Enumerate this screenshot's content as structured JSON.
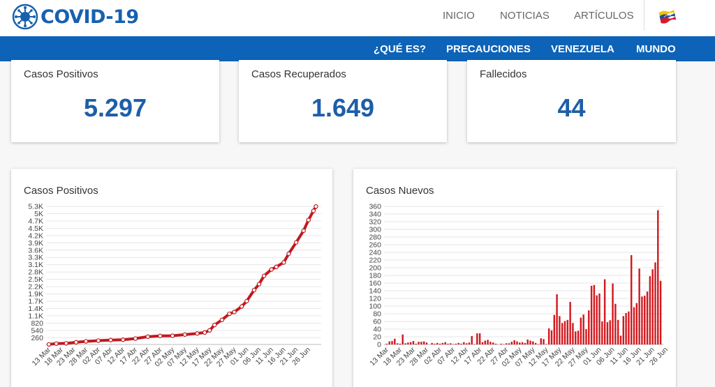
{
  "header": {
    "logo_text": "COVID-19",
    "nav": [
      "INICIO",
      "NOTICIAS",
      "ARTÍCULOS"
    ],
    "subnav": [
      "¿QUÉ ES?",
      "PRECAUCIONES",
      "VENEZUELA",
      "MUNDO"
    ],
    "colors": {
      "brand": "#1760b0",
      "bar": "#0d63b7"
    }
  },
  "stats": [
    {
      "label": "Casos Positivos",
      "value": "5.297"
    },
    {
      "label": "Casos Recuperados",
      "value": "1.649"
    },
    {
      "label": "Fallecidos",
      "value": "44"
    }
  ],
  "chart_data": [
    {
      "type": "line",
      "title": "Casos Positivos",
      "color": "#c0191f",
      "x_ticks": [
        "13 Mar",
        "18 Mar",
        "23 Mar",
        "28 Mar",
        "02 Abr",
        "07 Abr",
        "12 Abr",
        "17 Abr",
        "22 Abr",
        "27 Abr",
        "02 May",
        "07 May",
        "12 May",
        "17 May",
        "22 May",
        "27 May",
        "01 Jun",
        "06 Jun",
        "11 Jun",
        "16 Jun",
        "21 Jun",
        "26 Jun"
      ],
      "y_ticks": [
        "5.3K",
        "5K",
        "4.7K",
        "4.5K",
        "4.2K",
        "3.9K",
        "3.6K",
        "3.3K",
        "3.1K",
        "2.8K",
        "2.5K",
        "2.2K",
        "1.9K",
        "1.7K",
        "1.4K",
        "1.1K",
        "820",
        "540",
        "260"
      ],
      "y_tick_values": [
        5300,
        5020,
        4740,
        4460,
        4180,
        3900,
        3620,
        3340,
        3060,
        2780,
        2500,
        2220,
        1940,
        1660,
        1380,
        1100,
        820,
        540,
        260
      ],
      "ylim": [
        0,
        5300
      ],
      "x_start": "13 Mar",
      "values": [
        {
          "x": "13 Mar",
          "y": 2
        },
        {
          "x": "16 Mar",
          "y": 33
        },
        {
          "x": "20 Mar",
          "y": 42
        },
        {
          "x": "24 Mar",
          "y": 84
        },
        {
          "x": "28 Mar",
          "y": 119
        },
        {
          "x": "02 Abr",
          "y": 146
        },
        {
          "x": "07 Abr",
          "y": 167
        },
        {
          "x": "12 Abr",
          "y": 181
        },
        {
          "x": "17 Abr",
          "y": 227
        },
        {
          "x": "22 Abr",
          "y": 298
        },
        {
          "x": "27 Abr",
          "y": 329
        },
        {
          "x": "02 May",
          "y": 335
        },
        {
          "x": "07 May",
          "y": 379
        },
        {
          "x": "12 May",
          "y": 422
        },
        {
          "x": "15 May",
          "y": 459
        },
        {
          "x": "17 May",
          "y": 541
        },
        {
          "x": "19 May",
          "y": 749
        },
        {
          "x": "22 May",
          "y": 944
        },
        {
          "x": "25 May",
          "y": 1177
        },
        {
          "x": "27 May",
          "y": 1245
        },
        {
          "x": "30 May",
          "y": 1459
        },
        {
          "x": "01 Jun",
          "y": 1662
        },
        {
          "x": "04 Jun",
          "y": 2087
        },
        {
          "x": "06 Jun",
          "y": 2316
        },
        {
          "x": "08 Jun",
          "y": 2632
        },
        {
          "x": "11 Jun",
          "y": 2879
        },
        {
          "x": "13 Jun",
          "y": 2978
        },
        {
          "x": "16 Jun",
          "y": 3150
        },
        {
          "x": "18 Jun",
          "y": 3484
        },
        {
          "x": "21 Jun",
          "y": 3917
        },
        {
          "x": "24 Jun",
          "y": 4366
        },
        {
          "x": "26 Jun",
          "y": 4779
        },
        {
          "x": "28 Jun",
          "y": 5130
        },
        {
          "x": "29 Jun",
          "y": 5297
        }
      ]
    },
    {
      "type": "bar",
      "title": "Casos Nuevos",
      "color": "#d2191f",
      "x_ticks": [
        "13 Mar",
        "18 Mar",
        "23 Mar",
        "28 Mar",
        "02 Abr",
        "07 Abr",
        "12 Abr",
        "17 Abr",
        "22 Abr",
        "27 Abr",
        "02 May",
        "07 May",
        "12 May",
        "17 May",
        "22 May",
        "27 May",
        "01 Jun",
        "06 Jun",
        "11 Jun",
        "16 Jun",
        "21 Jun",
        "26 Jun"
      ],
      "y_ticks": [
        "360",
        "340",
        "320",
        "300",
        "280",
        "260",
        "240",
        "220",
        "200",
        "180",
        "160",
        "140",
        "120",
        "100",
        "80",
        "60",
        "40",
        "20",
        "0"
      ],
      "ylim": [
        0,
        360
      ],
      "x_start": "13 Mar",
      "values": [
        2,
        8,
        9,
        15,
        3,
        2,
        26,
        3,
        5,
        6,
        9,
        2,
        7,
        7,
        8,
        5,
        0,
        4,
        2,
        4,
        2,
        4,
        6,
        2,
        3,
        1,
        2,
        4,
        2,
        6,
        3,
        5,
        22,
        1,
        29,
        29,
        6,
        10,
        12,
        7,
        5,
        2,
        0,
        2,
        1,
        3,
        3,
        7,
        11,
        8,
        5,
        6,
        4,
        13,
        10,
        8,
        4,
        1,
        16,
        14,
        1,
        42,
        37,
        77,
        131,
        74,
        56,
        61,
        64,
        111,
        56,
        34,
        36,
        70,
        78,
        40,
        89,
        153,
        155,
        128,
        133,
        60,
        170,
        58,
        63,
        159,
        106,
        64,
        23,
        74,
        82,
        86,
        233,
        97,
        108,
        198,
        125,
        127,
        138,
        178,
        196,
        214,
        350,
        166
      ]
    }
  ]
}
